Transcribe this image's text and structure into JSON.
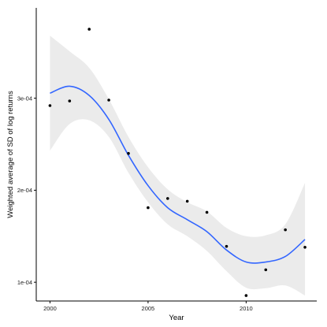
{
  "chart_data": {
    "type": "scatter",
    "title": "",
    "xlabel": "Year",
    "ylabel": "Weighted average of SD of log returns",
    "xlim": [
      1999.3,
      2013.6
    ],
    "ylim": [
      7.96e-05,
      0.0003982
    ],
    "x_ticks": [
      2000,
      2005,
      2010
    ],
    "x_tick_labels": [
      "2000",
      "2005",
      "2010"
    ],
    "y_ticks": [
      0.0001,
      0.0002,
      0.0003
    ],
    "y_tick_labels": [
      "1e-04",
      "2e-04",
      "3e-04"
    ],
    "grid": false,
    "colors": {
      "smooth": "#3366ff",
      "band": "#ebebeb",
      "points": "#000000",
      "axis": "#000000"
    },
    "points": {
      "x": [
        2000,
        2001,
        2002,
        2003,
        2004,
        2005,
        2006,
        2007,
        2008,
        2009,
        2010,
        2011,
        2012,
        2013
      ],
      "y": [
        0.000292,
        0.000297,
        0.000375,
        0.000298,
        0.00024,
        0.000181,
        0.000191,
        0.000188,
        0.000176,
        0.000139,
        8.55e-05,
        0.0001135,
        0.000157,
        0.000138
      ]
    },
    "smooth": {
      "x": [
        2000,
        2001,
        2002,
        2003,
        2004,
        2005,
        2006,
        2007,
        2008,
        2009,
        2010,
        2011,
        2012,
        2013
      ],
      "y": [
        0.0003055,
        0.000313,
        0.000303,
        0.000277,
        0.000238,
        0.000205,
        0.000181,
        0.000168,
        0.000155,
        0.000135,
        0.000122,
        0.000122,
        0.000128,
        0.0001465
      ],
      "lower": [
        0.000243,
        0.000272,
        0.000276,
        0.000258,
        0.000219,
        0.000187,
        0.000163,
        0.00015,
        0.000134,
        0.000112,
        9.4e-05,
        9.35e-05,
        9.65e-05,
        8.55e-05
      ],
      "upper": [
        0.000368,
        0.000351,
        0.000333,
        0.000299,
        0.000258,
        0.000225,
        0.000201,
        0.000187,
        0.000177,
        0.000159,
        0.00015,
        0.000151,
        0.000163,
        0.000208
      ]
    }
  }
}
